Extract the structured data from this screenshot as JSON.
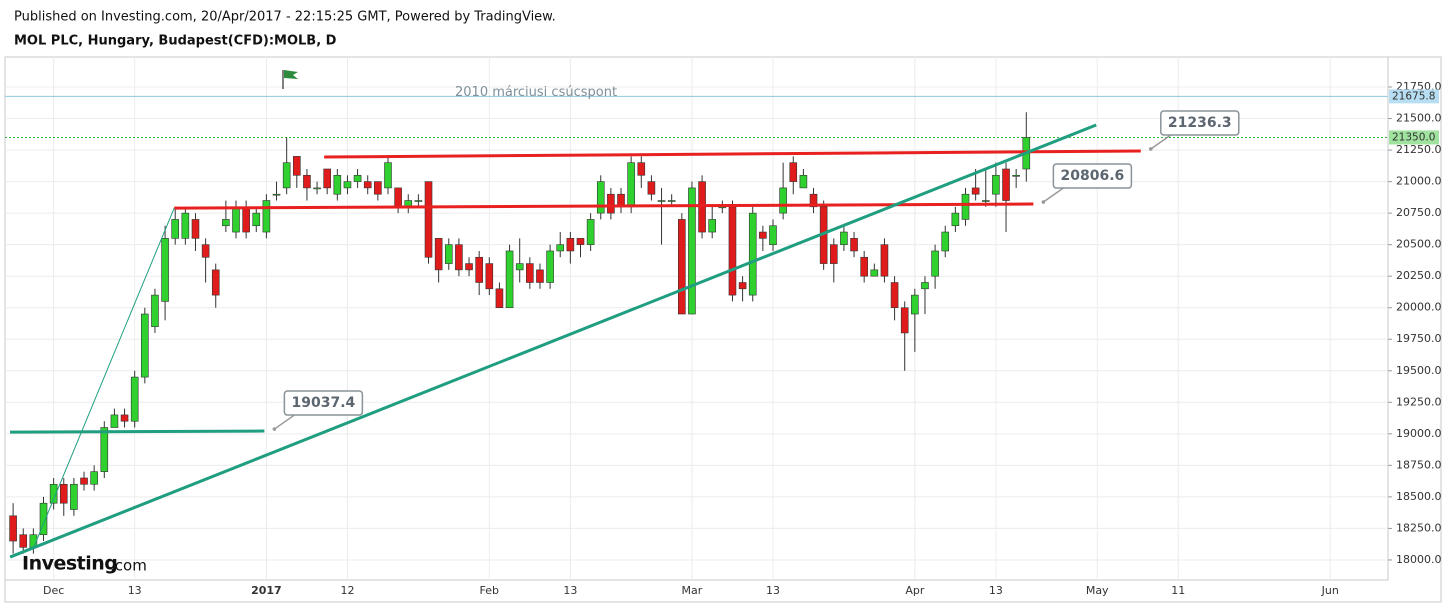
{
  "header": {
    "published": "Published on Investing.com, 20/Apr/2017 - 22:15:25 GMT, Powered by TradingView.",
    "symbol": "MOL PLC, Hungary, Budapest(CFD):MOLB, D"
  },
  "logo": {
    "brand": "Investing",
    "suffix": ".com"
  },
  "chart_data": {
    "type": "candlestick",
    "series": [
      {
        "up_color": "#2ed12e",
        "down_color": "#e01b1b",
        "open": [
          18350,
          18200,
          18100,
          18200,
          18450,
          18600,
          18400,
          18650,
          18600,
          18700,
          19050,
          19150,
          19100,
          19450,
          19850,
          20050,
          20550,
          20550,
          20700,
          20500,
          20300,
          20650,
          20600,
          20800,
          20650,
          20600,
          20900,
          20950,
          21200,
          21050,
          20950,
          21100,
          20900,
          20950,
          21000,
          21000,
          21000,
          20950,
          20950,
          20800,
          20850,
          21000,
          20550,
          20350,
          20500,
          20350,
          20400,
          20350,
          20150,
          20000,
          20300,
          20350,
          20300,
          20200,
          20450,
          20550,
          20550,
          20500,
          20750,
          20900,
          20900,
          20800,
          21150,
          21000,
          20850,
          20850,
          20700,
          19950,
          21000,
          20600,
          20800,
          20800,
          20200,
          20100,
          20600,
          20500,
          20750,
          21150,
          20950,
          20900,
          20800,
          20500,
          20500,
          20550,
          20400,
          20250,
          20500,
          20200,
          20000,
          19950,
          20150,
          20250,
          20450,
          20650,
          20700,
          20950,
          20850,
          20900,
          21100,
          21050,
          21100
        ],
        "high": [
          18450,
          18250,
          18250,
          18500,
          18650,
          18650,
          18650,
          18700,
          18750,
          19100,
          19200,
          19200,
          19500,
          20000,
          20150,
          20650,
          20800,
          20800,
          20750,
          20550,
          20350,
          20850,
          20850,
          20850,
          20800,
          20900,
          21000,
          21350,
          21200,
          21100,
          21000,
          21100,
          21100,
          21050,
          21100,
          21050,
          21000,
          21200,
          20950,
          20900,
          20900,
          21000,
          20550,
          20550,
          20550,
          20400,
          20450,
          20400,
          20200,
          20500,
          20550,
          20400,
          20350,
          20500,
          20600,
          20600,
          20550,
          20750,
          21050,
          20950,
          20950,
          21200,
          21200,
          21050,
          20950,
          20900,
          20750,
          21000,
          21050,
          20800,
          20850,
          20850,
          20250,
          20800,
          20650,
          20700,
          21150,
          21200,
          21100,
          20950,
          20850,
          20550,
          20650,
          20600,
          20450,
          20350,
          20550,
          20250,
          20050,
          20150,
          20250,
          20500,
          20650,
          20800,
          20950,
          21100,
          21100,
          21150,
          21150,
          21100,
          21550
        ],
        "low": [
          18050,
          18050,
          18050,
          18150,
          18400,
          18350,
          18350,
          18550,
          18550,
          18650,
          19050,
          19050,
          19050,
          19400,
          19800,
          19900,
          20500,
          20500,
          20450,
          20200,
          20000,
          20600,
          20550,
          20550,
          20600,
          20550,
          20850,
          20900,
          20950,
          20850,
          20900,
          20900,
          20850,
          20900,
          20950,
          20900,
          20850,
          20900,
          20750,
          20750,
          20800,
          20350,
          20200,
          20300,
          20250,
          20250,
          20100,
          20100,
          20000,
          20000,
          20200,
          20150,
          20150,
          20150,
          20400,
          20350,
          20400,
          20450,
          20700,
          20700,
          20750,
          20750,
          20950,
          20850,
          20500,
          20800,
          19950,
          19950,
          20550,
          20550,
          20750,
          20050,
          20050,
          20050,
          20450,
          20450,
          20700,
          20900,
          20950,
          20750,
          20300,
          20200,
          20450,
          20400,
          20200,
          20250,
          20200,
          19900,
          19500,
          19650,
          19950,
          20150,
          20400,
          20600,
          20650,
          20850,
          20800,
          20800,
          20600,
          20950,
          21000
        ],
        "close": [
          18150,
          18100,
          18200,
          18450,
          18600,
          18450,
          18600,
          18600,
          18700,
          19050,
          19150,
          19100,
          19450,
          19950,
          20100,
          20550,
          20700,
          20750,
          20550,
          20400,
          20100,
          20700,
          20800,
          20600,
          20750,
          20850,
          20900,
          21150,
          21050,
          20950,
          20950,
          20950,
          21050,
          21000,
          21050,
          20950,
          20900,
          21150,
          20800,
          20850,
          20850,
          20400,
          20300,
          20500,
          20300,
          20300,
          20200,
          20150,
          20000,
          20450,
          20350,
          20200,
          20200,
          20450,
          20500,
          20450,
          20500,
          20700,
          21000,
          20750,
          20800,
          21150,
          21050,
          20900,
          20850,
          20850,
          19950,
          20950,
          20600,
          20700,
          20800,
          20100,
          20150,
          20750,
          20550,
          20650,
          20950,
          21000,
          21050,
          20800,
          20350,
          20350,
          20600,
          20450,
          20250,
          20300,
          20250,
          20000,
          19800,
          20100,
          20200,
          20450,
          20600,
          20750,
          20900,
          20900,
          20850,
          21050,
          20850,
          21050,
          21350
        ]
      }
    ],
    "xlim": [
      -0.8,
      135.7
    ],
    "xticks": [
      {
        "value": 4,
        "label": "Dec"
      },
      {
        "value": 12,
        "label": "13"
      },
      {
        "value": 25,
        "label": "2017"
      },
      {
        "value": 33,
        "label": "12"
      },
      {
        "value": 47,
        "label": "Feb"
      },
      {
        "value": 55,
        "label": "13"
      },
      {
        "value": 67,
        "label": "Mar"
      },
      {
        "value": 75,
        "label": "13"
      },
      {
        "value": 89,
        "label": "Apr"
      },
      {
        "value": 97,
        "label": "13"
      },
      {
        "value": 107,
        "label": "May"
      },
      {
        "value": 115,
        "label": "11"
      },
      {
        "value": 130,
        "label": "Jun"
      }
    ],
    "ylim": [
      17841,
      21988
    ],
    "yticks": [
      {
        "value": 18000,
        "label": "18000.0"
      },
      {
        "value": 18250,
        "label": "18250.0"
      },
      {
        "value": 18500,
        "label": "18500.0"
      },
      {
        "value": 18750,
        "label": "18750.0"
      },
      {
        "value": 19000,
        "label": "19000.0"
      },
      {
        "value": 19250,
        "label": "19250.0"
      },
      {
        "value": 19500,
        "label": "19500.0"
      },
      {
        "value": 19750,
        "label": "19750.0"
      },
      {
        "value": 20000,
        "label": "20000.0"
      },
      {
        "value": 20250,
        "label": "20250.0"
      },
      {
        "value": 20500,
        "label": "20500.0"
      },
      {
        "value": 20750,
        "label": "20750.0"
      },
      {
        "value": 21000,
        "label": "21000.0"
      },
      {
        "value": 21250,
        "label": "21250.0"
      },
      {
        "value": 21500,
        "label": "21500.0"
      },
      {
        "value": 21750,
        "label": "21750.0"
      }
    ],
    "grid": true,
    "price_lines": [
      {
        "value": 21675.8,
        "color": "#8cc8e6",
        "fill": "#b7def2",
        "dash": false
      },
      {
        "value": 21350,
        "label": "21350.0",
        "color": "#2fb52f",
        "fill": "#9fe39f",
        "dash": true
      }
    ],
    "annotation": "2010 márciusi csúcspont",
    "trendlines": [
      {
        "x": [
          30.7,
          111.3
        ],
        "y": [
          21195,
          21243
        ],
        "color": "#e8201f",
        "width": 3,
        "callout": 21236.3
      },
      {
        "x": [
          15.9,
          100.7
        ],
        "y": [
          20790,
          20822
        ],
        "color": "#e8201f",
        "width": 3,
        "callout": 20806.6
      },
      {
        "x": [
          -0.3,
          24.8
        ],
        "y": [
          19014,
          19022
        ],
        "color": "#1f9e80",
        "width": 3,
        "callout": 19037.4
      },
      {
        "x": [
          -0.3,
          106.9
        ],
        "y": [
          18023,
          21449
        ],
        "color": "#1f9e80",
        "width": 3
      },
      {
        "x": [
          2,
          15.9
        ],
        "y": [
          18094,
          20790
        ],
        "color": "#1f9e80",
        "width": 1
      }
    ]
  }
}
